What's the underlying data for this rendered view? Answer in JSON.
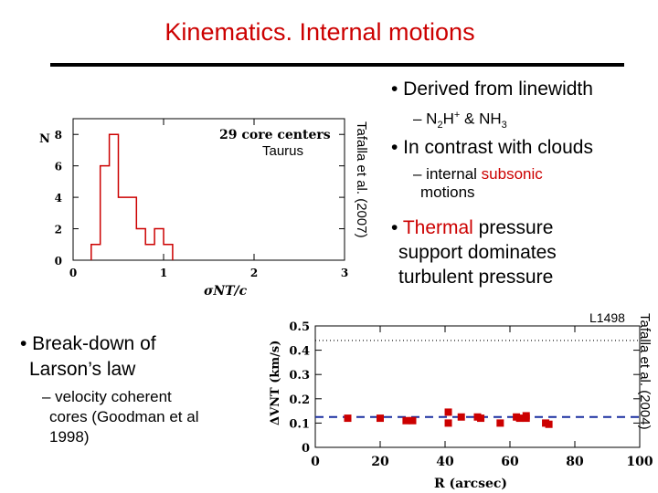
{
  "slide": {
    "title": "Kinematics. Internal motions",
    "bullets_right": {
      "b1": "• Derived from linewidth",
      "b1_sub": "– N2H+ & NH3",
      "b1_sub_parts": {
        "dash": "– N",
        "n2sub": "2",
        "h": "H",
        "plus": "+",
        "amp": " & NH",
        "nh3sub": "3"
      },
      "b2": "• In contrast with clouds",
      "b2_sub_a": "– internal ",
      "b2_sub_red": "subsonic",
      "b2_sub_b": "motions",
      "b3_bullet": "• ",
      "b3_red": "Thermal",
      "b3_rest1": " pressure",
      "b3_rest2": "support dominates",
      "b3_rest3": "turbulent pressure"
    },
    "bullets_left": {
      "b1_line1": "• Break-down of",
      "b1_line2": "Larson’s law",
      "sub_line1": "– velocity coherent",
      "sub_line2": "cores (Goodman et al",
      "sub_line3": "1998)"
    },
    "credit_top": "Tafalla et al. (2007)",
    "credit_bottom": "Tafalla et al. (2004)",
    "label_bottom": "L1498",
    "colors": {
      "title": "#cc0000",
      "accent": "#cc0000"
    }
  },
  "chart_data": [
    {
      "type": "bar",
      "style": "step histogram",
      "annotation": "29 core centers",
      "region": "Taurus",
      "xlabel": "σNT/c",
      "ylabel": "N",
      "xlim": [
        0,
        3
      ],
      "ylim": [
        0,
        9
      ],
      "xticks": [
        "0",
        "1",
        "2",
        "3"
      ],
      "yticks": [
        "0",
        "2",
        "4",
        "6",
        "8"
      ],
      "bins": [
        {
          "from": 0.2,
          "to": 0.3,
          "count": 1
        },
        {
          "from": 0.3,
          "to": 0.4,
          "count": 6
        },
        {
          "from": 0.4,
          "to": 0.5,
          "count": 8
        },
        {
          "from": 0.5,
          "to": 0.6,
          "count": 4
        },
        {
          "from": 0.6,
          "to": 0.7,
          "count": 4
        },
        {
          "from": 0.7,
          "to": 0.8,
          "count": 2
        },
        {
          "from": 0.8,
          "to": 0.9,
          "count": 1
        },
        {
          "from": 0.9,
          "to": 1.0,
          "count": 2
        },
        {
          "from": 1.0,
          "to": 1.1,
          "count": 1
        }
      ],
      "color": "#cc0000"
    },
    {
      "type": "scatter",
      "xlabel": "R (arcsec)",
      "ylabel": "ΔVNT (km/s)",
      "xlim": [
        0,
        100
      ],
      "ylim": [
        0,
        0.5
      ],
      "xticks": [
        "0",
        "20",
        "40",
        "60",
        "80",
        "100"
      ],
      "yticks": [
        "0",
        "0.1",
        "0.2",
        "0.3",
        "0.4",
        "0.5"
      ],
      "points": [
        {
          "x": 10,
          "y": 0.12
        },
        {
          "x": 20,
          "y": 0.12
        },
        {
          "x": 28,
          "y": 0.11
        },
        {
          "x": 30,
          "y": 0.11
        },
        {
          "x": 41,
          "y": 0.145
        },
        {
          "x": 41,
          "y": 0.1
        },
        {
          "x": 45,
          "y": 0.125
        },
        {
          "x": 50,
          "y": 0.125
        },
        {
          "x": 51,
          "y": 0.12
        },
        {
          "x": 57,
          "y": 0.1
        },
        {
          "x": 62,
          "y": 0.125
        },
        {
          "x": 63,
          "y": 0.12
        },
        {
          "x": 65,
          "y": 0.13
        },
        {
          "x": 65,
          "y": 0.12
        },
        {
          "x": 71,
          "y": 0.1
        },
        {
          "x": 72,
          "y": 0.095
        }
      ],
      "dashed_line_y": 0.125,
      "dotted_line_y": 0.44,
      "color": "#cc0000"
    }
  ]
}
